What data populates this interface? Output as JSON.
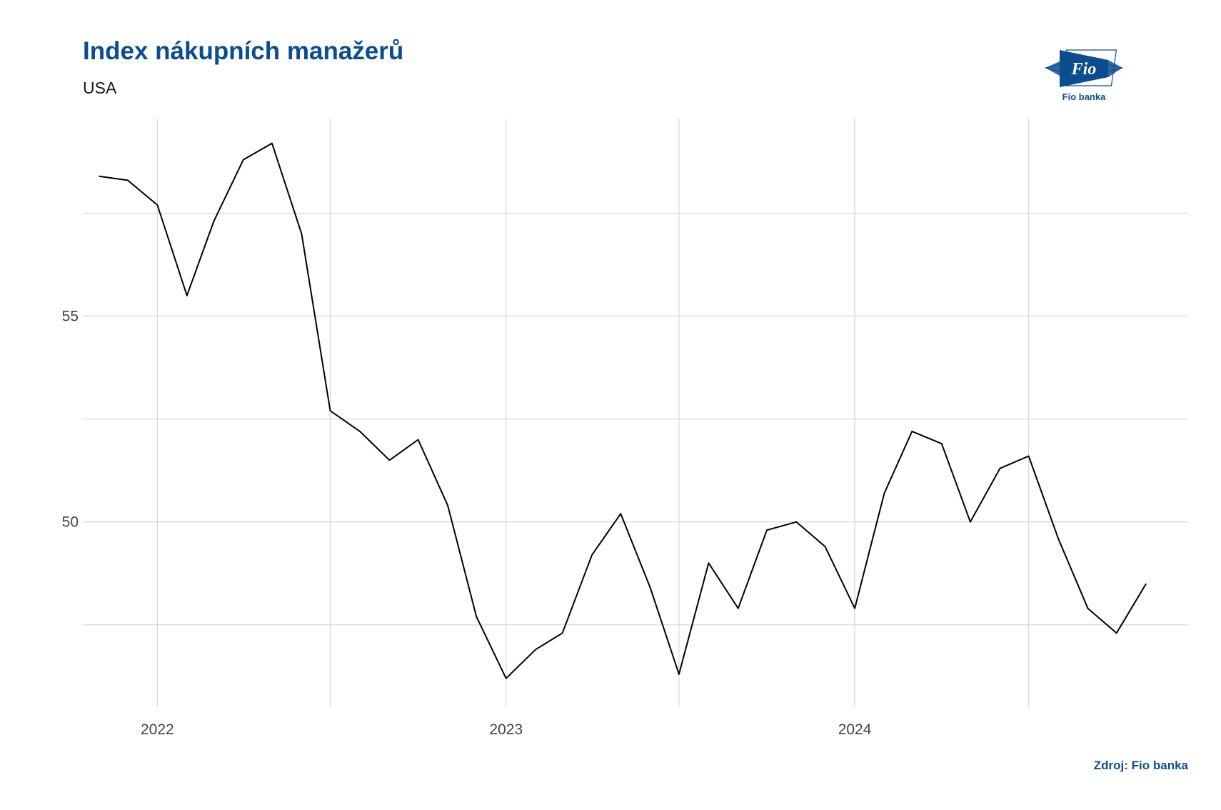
{
  "header": {
    "title": "Index nákupních manažerů",
    "subtitle": "USA"
  },
  "logo": {
    "text": "Fio",
    "caption": "Fio banka",
    "color": "#0b4d8e"
  },
  "footer": {
    "source": "Zdroj: Fio banka"
  },
  "chart_data": {
    "type": "line",
    "title": "Index nákupních manažerů",
    "subtitle": "USA",
    "xlabel": "",
    "ylabel": "",
    "x_ticks": [
      "2022",
      "2023",
      "2024"
    ],
    "y_ticks": [
      50,
      55
    ],
    "xlim": [
      "2021-10-15",
      "2024-12-15"
    ],
    "ylim": [
      45.5,
      59.8
    ],
    "grid": true,
    "legend": "none",
    "line_color": "#000000",
    "series": [
      {
        "x": [
          "2021-11-01",
          "2021-12-01",
          "2022-01-01",
          "2022-02-01",
          "2022-03-01",
          "2022-04-01",
          "2022-05-01",
          "2022-06-01",
          "2022-07-01",
          "2022-08-01",
          "2022-09-01",
          "2022-10-01",
          "2022-11-01",
          "2022-12-01",
          "2023-01-01",
          "2023-02-01",
          "2023-03-01",
          "2023-04-01",
          "2023-05-01",
          "2023-06-01",
          "2023-07-01",
          "2023-08-01",
          "2023-09-01",
          "2023-10-01",
          "2023-11-01",
          "2023-12-01",
          "2024-01-01",
          "2024-02-01",
          "2024-03-01",
          "2024-04-01",
          "2024-05-01",
          "2024-06-01",
          "2024-07-01",
          "2024-08-01",
          "2024-09-01",
          "2024-10-01",
          "2024-11-01"
        ],
        "values": [
          58.4,
          58.3,
          57.7,
          55.5,
          57.3,
          58.8,
          59.2,
          57.0,
          52.7,
          52.2,
          51.5,
          52.0,
          50.4,
          47.7,
          46.2,
          46.9,
          47.3,
          49.2,
          50.2,
          48.4,
          46.3,
          49.0,
          47.9,
          49.8,
          50.0,
          49.4,
          47.9,
          50.7,
          52.2,
          51.9,
          50.0,
          51.3,
          51.6,
          49.6,
          47.9,
          47.3,
          48.5
        ]
      }
    ]
  }
}
